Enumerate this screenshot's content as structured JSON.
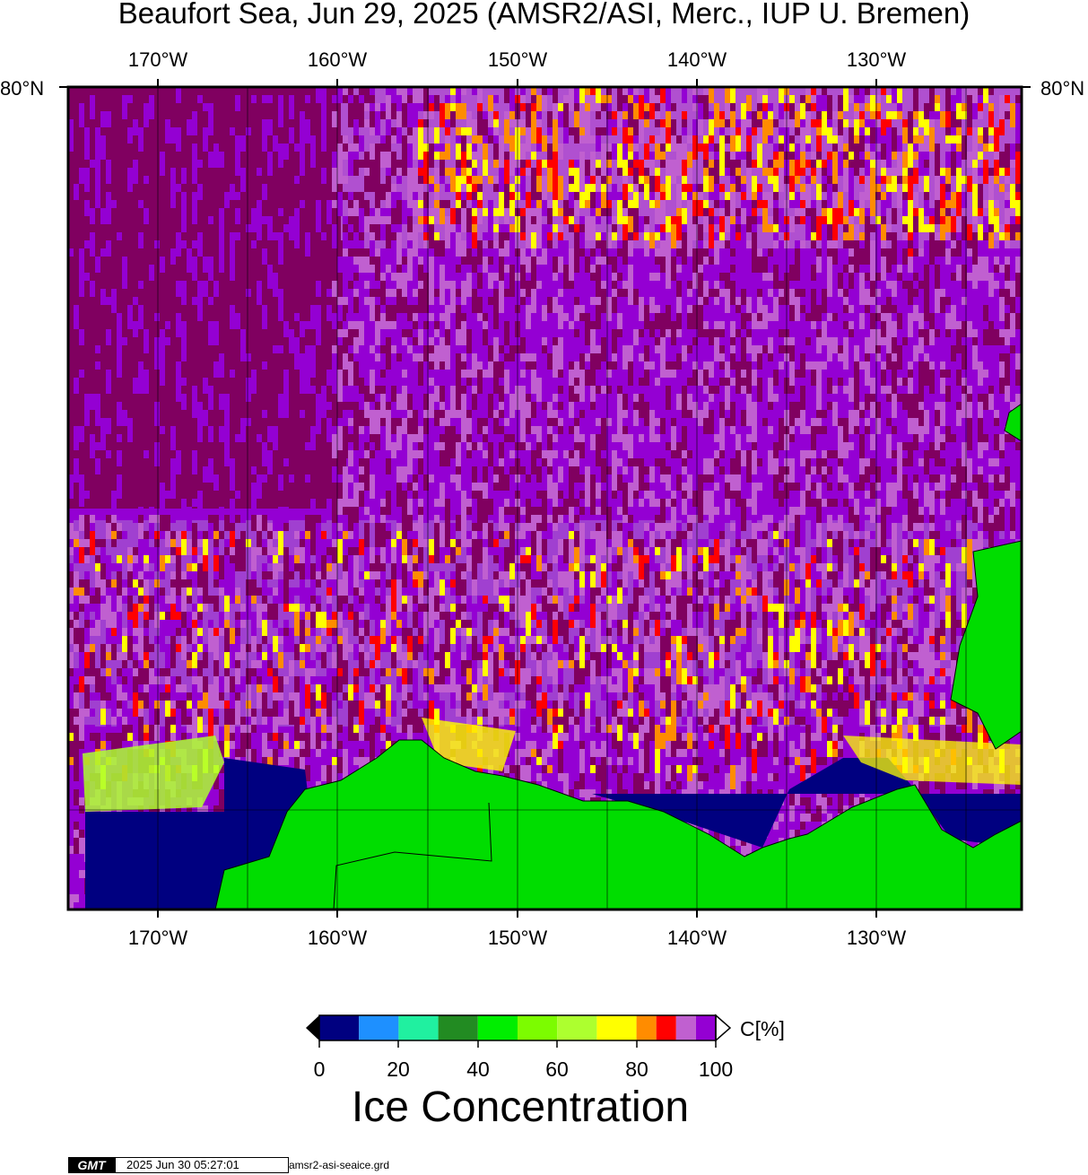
{
  "title": "Beaufort Sea, Jun 29, 2025 (AMSR2/ASI, Merc., IUP U. Bremen)",
  "map": {
    "lon_labels": [
      "170°W",
      "160°W",
      "150°W",
      "140°W",
      "130°W"
    ],
    "lat_label_left": "80°N",
    "lat_label_right": "80°N",
    "land_color": "#00dd00",
    "open_water_color": "#000080",
    "boundary_color": "#000000"
  },
  "colorbar": {
    "ticks": [
      "0",
      "20",
      "40",
      "60",
      "80",
      "100"
    ],
    "unit": "C[%]",
    "colors": [
      "#000080",
      "#1e90ff",
      "#20f0a0",
      "#228b22",
      "#00ee00",
      "#7cfc00",
      "#adff2f",
      "#ffff00",
      "#ff8c00",
      "#ff0000",
      "#c060d0",
      "#9400d3"
    ],
    "label": "Ice Concentration"
  },
  "footer": {
    "logo_text": "GMT",
    "timestamp": "2025 Jun 30 05:27:01",
    "grid_file": "amsr2-asi-seaice.grd"
  }
}
